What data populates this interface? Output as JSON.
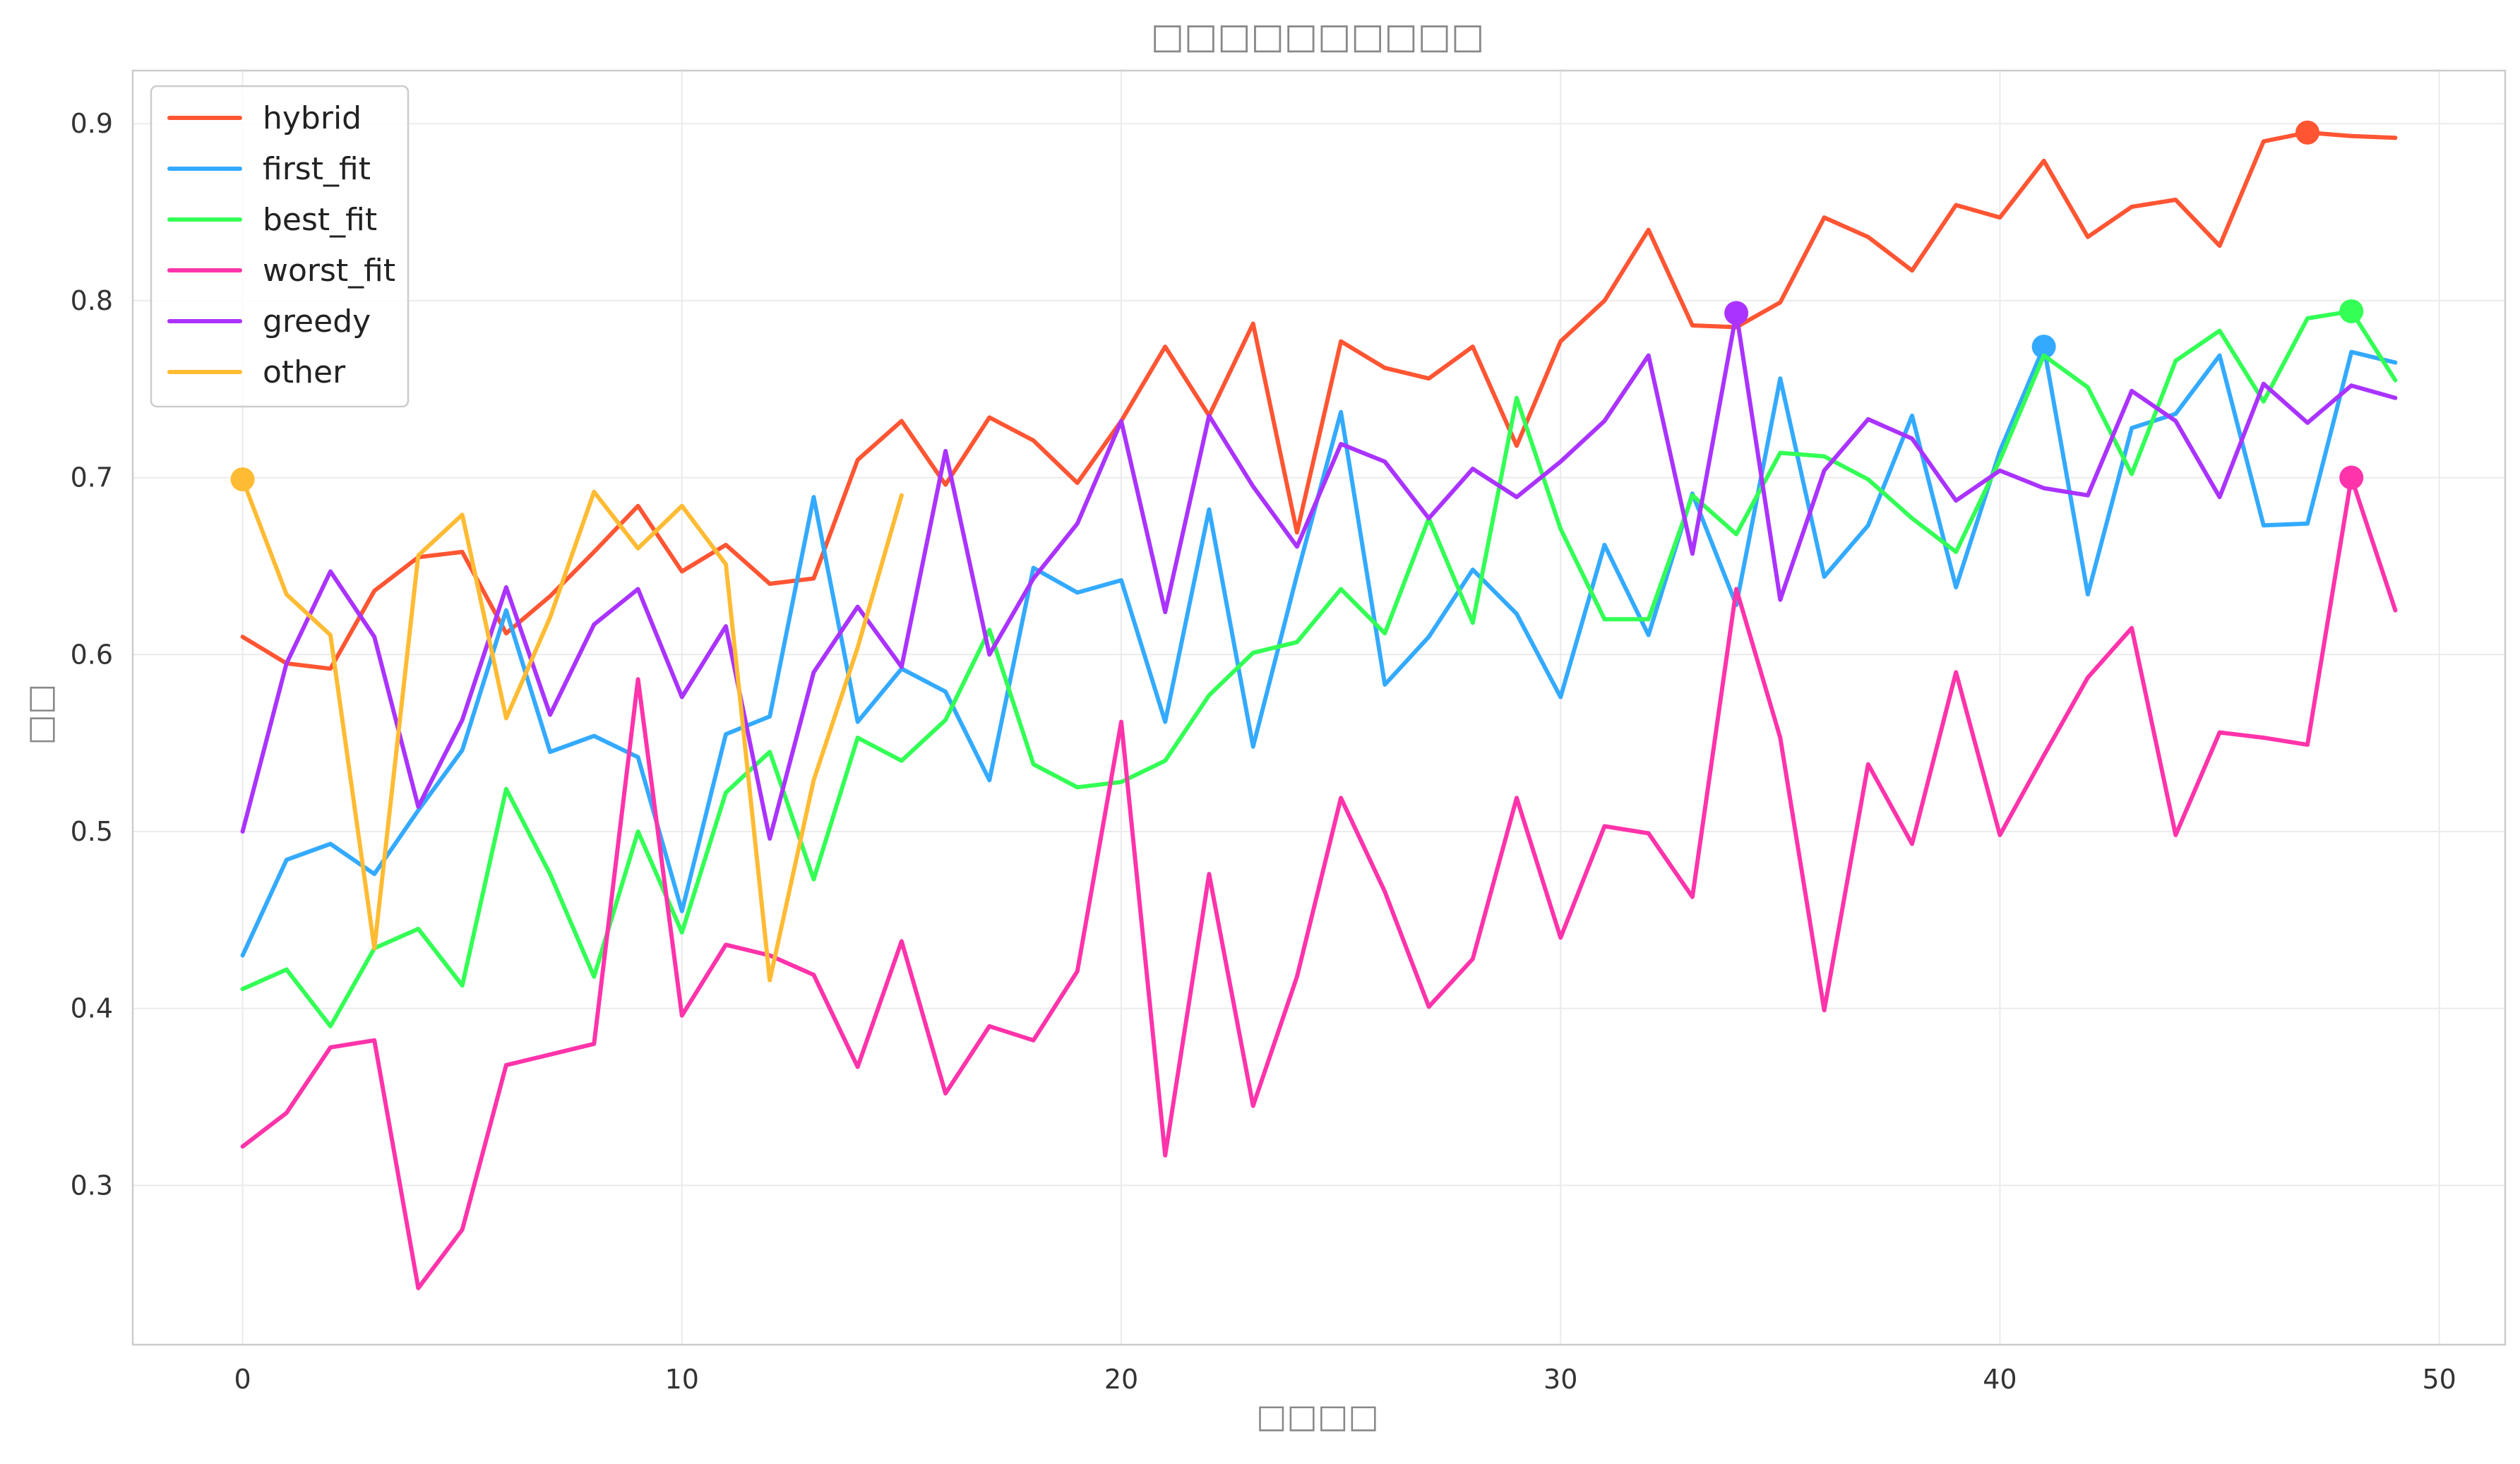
{
  "chart_data": {
    "type": "line",
    "title": "□□□□□□□□□□",
    "xlabel": "□□□□",
    "ylabel": "□□",
    "xlim": [
      -2.5,
      51.5
    ],
    "ylim": [
      0.21,
      0.93
    ],
    "xticks": [
      0,
      10,
      20,
      30,
      40,
      50
    ],
    "yticks": [
      0.3,
      0.4,
      0.5,
      0.6,
      0.7,
      0.8,
      0.9
    ],
    "grid": true,
    "legend": "top-left",
    "series": [
      {
        "name": "hybrid",
        "color": "#ff5533",
        "marker_index": 47,
        "y": [
          0.61,
          0.595,
          0.592,
          0.636,
          0.655,
          0.658,
          0.612,
          0.633,
          0.658,
          0.684,
          0.647,
          0.662,
          0.64,
          0.643,
          0.71,
          0.732,
          0.696,
          0.734,
          0.721,
          0.697,
          0.732,
          0.774,
          0.735,
          0.787,
          0.669,
          0.777,
          0.762,
          0.756,
          0.774,
          0.718,
          0.777,
          0.8,
          0.84,
          0.786,
          0.785,
          0.799,
          0.847,
          0.836,
          0.817,
          0.854,
          0.847,
          0.879,
          0.836,
          0.853,
          0.857,
          0.831,
          0.89,
          0.895,
          0.893,
          0.892
        ]
      },
      {
        "name": "first_fit",
        "color": "#33aaff",
        "marker_index": 41,
        "y": [
          0.43,
          0.484,
          0.493,
          0.476,
          0.512,
          0.546,
          0.625,
          0.545,
          0.554,
          0.542,
          0.455,
          0.555,
          0.565,
          0.689,
          0.562,
          0.592,
          0.579,
          0.529,
          0.649,
          0.635,
          0.642,
          0.562,
          0.682,
          0.548,
          0.645,
          0.737,
          0.583,
          0.61,
          0.648,
          0.623,
          0.576,
          0.662,
          0.611,
          0.691,
          0.628,
          0.756,
          0.644,
          0.673,
          0.735,
          0.638,
          0.715,
          0.774,
          0.634,
          0.728,
          0.736,
          0.769,
          0.673,
          0.674,
          0.771,
          0.765
        ]
      },
      {
        "name": "best_fit",
        "color": "#33ff55",
        "marker_index": 48,
        "y": [
          0.411,
          0.422,
          0.39,
          0.434,
          0.445,
          0.413,
          0.524,
          0.476,
          0.418,
          0.5,
          0.443,
          0.522,
          0.545,
          0.473,
          0.553,
          0.54,
          0.563,
          0.614,
          0.538,
          0.525,
          0.528,
          0.54,
          0.577,
          0.601,
          0.607,
          0.637,
          0.612,
          0.677,
          0.618,
          0.745,
          0.671,
          0.62,
          0.62,
          0.69,
          0.668,
          0.714,
          0.712,
          0.699,
          0.677,
          0.658,
          0.71,
          0.769,
          0.751,
          0.702,
          0.766,
          0.783,
          0.743,
          0.79,
          0.794,
          0.755
        ]
      },
      {
        "name": "worst_fit",
        "color": "#ff33aa",
        "marker_index": 48,
        "y": [
          0.322,
          0.341,
          0.378,
          0.382,
          0.242,
          0.275,
          0.368,
          0.374,
          0.38,
          0.586,
          0.396,
          0.436,
          0.43,
          0.419,
          0.367,
          0.438,
          0.352,
          0.39,
          0.382,
          0.421,
          0.562,
          0.317,
          0.476,
          0.345,
          0.418,
          0.519,
          0.466,
          0.401,
          0.428,
          0.519,
          0.44,
          0.503,
          0.499,
          0.463,
          0.637,
          0.553,
          0.399,
          0.538,
          0.493,
          0.59,
          0.498,
          0.543,
          0.587,
          0.615,
          0.498,
          0.556,
          0.553,
          0.549,
          0.7,
          0.625
        ]
      },
      {
        "name": "greedy",
        "color": "#aa33ff",
        "marker_index": 34,
        "y": [
          0.5,
          0.595,
          0.647,
          0.61,
          0.514,
          0.563,
          0.638,
          0.566,
          0.617,
          0.637,
          0.576,
          0.616,
          0.496,
          0.59,
          0.627,
          0.593,
          0.715,
          0.6,
          0.643,
          0.674,
          0.732,
          0.624,
          0.735,
          0.695,
          0.661,
          0.719,
          0.709,
          0.677,
          0.705,
          0.689,
          0.709,
          0.732,
          0.769,
          0.657,
          0.793,
          0.631,
          0.704,
          0.733,
          0.722,
          0.687,
          0.704,
          0.694,
          0.69,
          0.749,
          0.732,
          0.689,
          0.753,
          0.731,
          0.752,
          0.745
        ]
      },
      {
        "name": "other",
        "color": "#ffbb33",
        "marker_index": 0,
        "y": [
          0.699,
          0.634,
          0.611,
          0.434,
          0.656,
          0.679,
          0.564,
          0.621,
          0.692,
          0.66,
          0.684,
          0.651,
          0.416,
          0.529,
          0.604,
          0.69
        ]
      }
    ]
  }
}
